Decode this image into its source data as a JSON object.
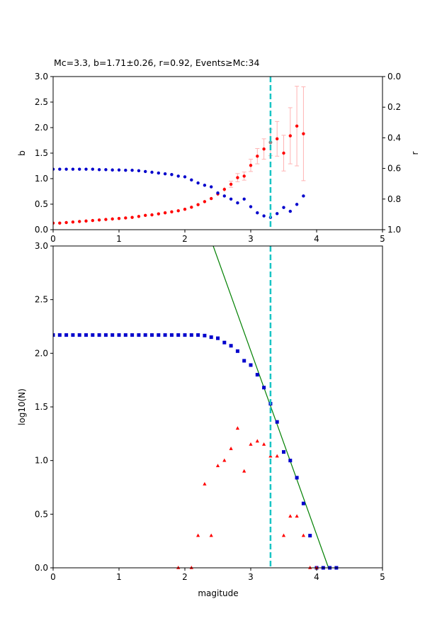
{
  "figure_title": "Mc=3.3, b=1.71±0.26, r=0.92, Events≥Mc:34",
  "colors": {
    "b_series": "#ff0000",
    "b_errorbar": "#ffb3b3",
    "r_series": "#0000cc",
    "mc_line": "#18c4c4",
    "fit_line": "#008000",
    "cumulative": "#0000cc",
    "noncumulative": "#ff0000",
    "best_point": "#888888"
  },
  "chart_data": [
    {
      "type": "scatter",
      "xlabel": "",
      "ylabel": "b",
      "ylabel_right": "r",
      "xlim": [
        0,
        5
      ],
      "ylim": [
        0,
        3
      ],
      "ylim_right": [
        1,
        0
      ],
      "xticks": [
        "0",
        "1",
        "2",
        "3",
        "4",
        "5"
      ],
      "yticks": [
        "0.0",
        "0.5",
        "1.0",
        "1.5",
        "2.0",
        "2.5",
        "3.0"
      ],
      "yticks_right": [
        "0.0",
        "0.2",
        "0.4",
        "0.6",
        "0.8",
        "1.0"
      ],
      "mc_line_x": 3.3,
      "b_series": {
        "x": [
          0.0,
          0.1,
          0.2,
          0.3,
          0.4,
          0.5,
          0.6,
          0.7,
          0.8,
          0.9,
          1.0,
          1.1,
          1.2,
          1.3,
          1.4,
          1.5,
          1.6,
          1.7,
          1.8,
          1.9,
          2.0,
          2.1,
          2.2,
          2.3,
          2.4,
          2.5,
          2.6,
          2.7,
          2.8,
          2.9,
          3.0,
          3.1,
          3.2,
          3.3,
          3.4,
          3.5,
          3.6,
          3.7,
          3.8
        ],
        "y": [
          0.13,
          0.13,
          0.14,
          0.15,
          0.16,
          0.17,
          0.18,
          0.19,
          0.2,
          0.21,
          0.22,
          0.23,
          0.24,
          0.26,
          0.28,
          0.29,
          0.31,
          0.33,
          0.35,
          0.37,
          0.4,
          0.44,
          0.49,
          0.55,
          0.61,
          0.7,
          0.79,
          0.89,
          1.02,
          1.05,
          1.26,
          1.44,
          1.58,
          1.71,
          1.78,
          1.5,
          1.84,
          2.03,
          1.88
        ],
        "err": [
          0.01,
          0.01,
          0.01,
          0.01,
          0.01,
          0.01,
          0.01,
          0.01,
          0.01,
          0.01,
          0.01,
          0.01,
          0.01,
          0.01,
          0.01,
          0.01,
          0.01,
          0.01,
          0.01,
          0.01,
          0.02,
          0.02,
          0.02,
          0.03,
          0.03,
          0.04,
          0.05,
          0.06,
          0.08,
          0.08,
          0.12,
          0.15,
          0.2,
          0.26,
          0.34,
          0.35,
          0.55,
          0.78,
          0.92
        ]
      },
      "r_series": {
        "x": [
          0.0,
          0.1,
          0.2,
          0.3,
          0.4,
          0.5,
          0.6,
          0.7,
          0.8,
          0.9,
          1.0,
          1.1,
          1.2,
          1.3,
          1.4,
          1.5,
          1.6,
          1.7,
          1.8,
          1.9,
          2.0,
          2.1,
          2.2,
          2.3,
          2.4,
          2.5,
          2.6,
          2.7,
          2.8,
          2.9,
          3.0,
          3.1,
          3.2,
          3.3,
          3.4,
          3.5,
          3.6,
          3.7,
          3.8
        ],
        "y": [
          0.605,
          0.605,
          0.605,
          0.605,
          0.605,
          0.605,
          0.605,
          0.608,
          0.608,
          0.61,
          0.61,
          0.612,
          0.612,
          0.615,
          0.62,
          0.625,
          0.63,
          0.635,
          0.64,
          0.65,
          0.655,
          0.675,
          0.695,
          0.71,
          0.72,
          0.76,
          0.78,
          0.8,
          0.825,
          0.8,
          0.85,
          0.89,
          0.91,
          0.92,
          0.895,
          0.855,
          0.88,
          0.835,
          0.78
        ]
      },
      "best_point": {
        "x": 3.3,
        "y": 1.71
      }
    },
    {
      "type": "scatter",
      "xlabel": "magitude",
      "ylabel": "log10(N)",
      "xlim": [
        0,
        5
      ],
      "ylim": [
        0,
        3
      ],
      "xticks": [
        "0",
        "1",
        "2",
        "3",
        "4",
        "5"
      ],
      "yticks": [
        "0.0",
        "0.5",
        "1.0",
        "1.5",
        "2.0",
        "2.5",
        "3.0"
      ],
      "mc_line_x": 3.3,
      "fit_line": {
        "x": [
          2.43,
          4.18
        ],
        "y": [
          3.0,
          0.0
        ]
      },
      "cumulative": {
        "x": [
          0.0,
          0.1,
          0.2,
          0.3,
          0.4,
          0.5,
          0.6,
          0.7,
          0.8,
          0.9,
          1.0,
          1.1,
          1.2,
          1.3,
          1.4,
          1.5,
          1.6,
          1.7,
          1.8,
          1.9,
          2.0,
          2.1,
          2.2,
          2.3,
          2.4,
          2.5,
          2.6,
          2.7,
          2.8,
          2.9,
          3.0,
          3.1,
          3.2,
          3.3,
          3.4,
          3.5,
          3.6,
          3.7,
          3.8,
          3.9,
          4.0,
          4.1,
          4.2,
          4.3
        ],
        "y": [
          2.17,
          2.17,
          2.17,
          2.17,
          2.17,
          2.17,
          2.17,
          2.17,
          2.17,
          2.17,
          2.17,
          2.17,
          2.17,
          2.17,
          2.17,
          2.17,
          2.17,
          2.17,
          2.17,
          2.17,
          2.17,
          2.17,
          2.17,
          2.165,
          2.15,
          2.14,
          2.1,
          2.07,
          2.02,
          1.93,
          1.89,
          1.8,
          1.68,
          1.53,
          1.36,
          1.08,
          1.0,
          0.84,
          0.6,
          0.3,
          0.0,
          0.0,
          0.0,
          0.0
        ]
      },
      "noncumulative": {
        "x": [
          1.9,
          2.1,
          2.2,
          2.3,
          2.4,
          2.5,
          2.6,
          2.7,
          2.8,
          2.9,
          3.0,
          3.1,
          3.2,
          3.3,
          3.4,
          3.5,
          3.6,
          3.7,
          3.8,
          3.9,
          4.0
        ],
        "y": [
          0.0,
          0.0,
          0.3,
          0.78,
          0.3,
          0.95,
          1.0,
          1.11,
          1.3,
          0.9,
          1.15,
          1.18,
          1.15,
          1.04,
          1.04,
          0.3,
          0.48,
          0.48,
          0.3,
          0.0,
          0.0
        ]
      }
    }
  ]
}
